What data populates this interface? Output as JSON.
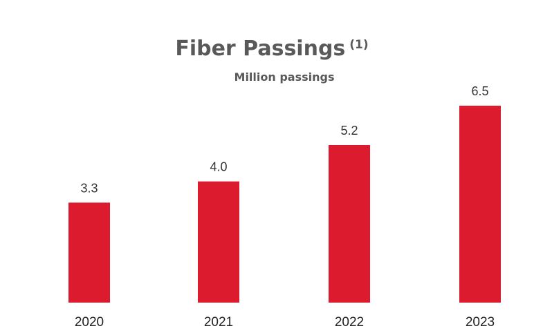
{
  "chart_data": {
    "type": "bar",
    "title": "Fiber Passings",
    "title_footnote": "(1)",
    "subtitle": "Million passings",
    "categories": [
      "2020",
      "2021",
      "2022",
      "2023"
    ],
    "values": [
      3.3,
      4.0,
      5.2,
      6.5
    ],
    "value_labels": [
      "3.3",
      "4.0",
      "5.2",
      "6.5"
    ],
    "ylim": [
      0,
      7.5
    ],
    "grid": false,
    "legend": "none",
    "bar_color": "#dc1c2e",
    "background_color": "#ffffff",
    "text_color": "#595959"
  }
}
